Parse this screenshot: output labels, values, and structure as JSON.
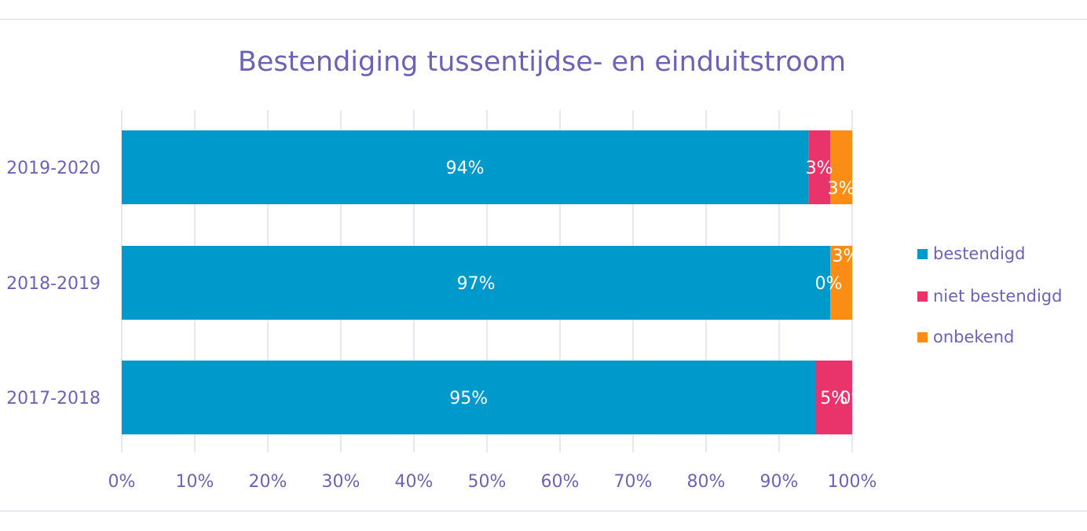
{
  "chart_data": {
    "type": "bar",
    "orientation": "horizontal",
    "stacked": "percent",
    "title": "Bestendiging tussentijdse- en einduitstroom",
    "categories": [
      "2019-2020",
      "2018-2019",
      "2017-2018"
    ],
    "series": [
      {
        "name": "bestendigd",
        "color": "#0099cc",
        "values": [
          94,
          97,
          95
        ],
        "labels": [
          "94%",
          "97%",
          "95%"
        ]
      },
      {
        "name": "niet bestendigd",
        "color": "#e8336b",
        "values": [
          3,
          0,
          5
        ],
        "labels": [
          "3%",
          "0%",
          "5%"
        ]
      },
      {
        "name": "onbekend",
        "color": "#fb8c14",
        "values": [
          3,
          3,
          0
        ],
        "labels": [
          "3%",
          "3%",
          "0%"
        ]
      }
    ],
    "x_ticks": [
      "0%",
      "10%",
      "20%",
      "30%",
      "40%",
      "50%",
      "60%",
      "70%",
      "80%",
      "90%",
      "100%"
    ],
    "xlim": [
      0,
      100
    ],
    "grid": true,
    "legend_position": "right"
  }
}
